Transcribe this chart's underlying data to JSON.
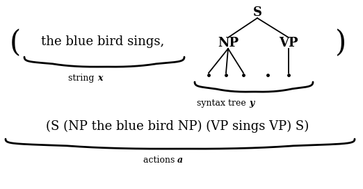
{
  "bg_color": "#ffffff",
  "fig_width": 5.22,
  "fig_height": 2.72,
  "dpi": 100,
  "top_paren_left": "(",
  "top_paren_right": ")",
  "string_text": "the blue bird sings,",
  "string_label_regular": "string ",
  "string_label_italic": "x",
  "tree_root": "S",
  "tree_np": "NP",
  "tree_vp": "VP",
  "syntax_label_regular": "syntax tree ",
  "syntax_label_italic": "y",
  "actions_line": "(S (NP the blue bird NP) (VP sings VP) S)",
  "actions_label_regular": "actions ",
  "actions_label_italic": "a",
  "main_fontsize": 13,
  "label_fontsize": 9,
  "tree_fontsize": 13,
  "actions_fontsize": 13,
  "paren_fontsize": 30
}
